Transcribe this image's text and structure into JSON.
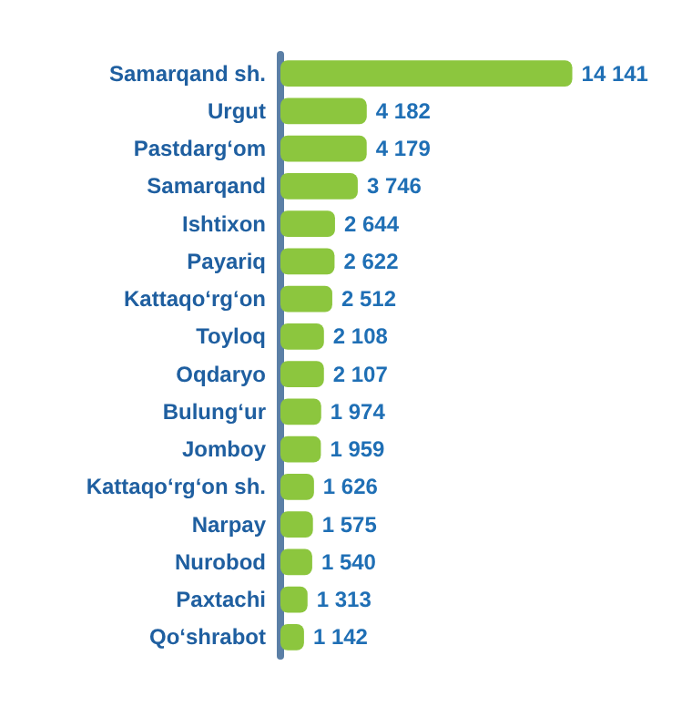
{
  "chart_data": {
    "type": "bar",
    "orientation": "horizontal",
    "categories": [
      "Samarqand sh.",
      "Urgut",
      "Pastdarg‘om",
      "Samarqand",
      "Ishtixon",
      "Payariq",
      "Kattaqo‘rg‘on",
      "Toyloq",
      "Oqdaryo",
      "Bulung‘ur",
      "Jomboy",
      "Kattaqo‘rg‘on sh.",
      "Narpay",
      "Nurobod",
      "Paxtachi",
      "Qo‘shrabot"
    ],
    "values": [
      14141,
      4182,
      4179,
      3746,
      2644,
      2622,
      2512,
      2108,
      2107,
      1974,
      1959,
      1626,
      1575,
      1540,
      1313,
      1142
    ],
    "value_labels": [
      "14 141",
      "4 182",
      "4 179",
      "3 746",
      "2 644",
      "2 622",
      "2 512",
      "2 108",
      "2 107",
      "1 974",
      "1 959",
      "1 626",
      "1 575",
      "1 540",
      "1 313",
      "1 142"
    ],
    "color": "#8cc63e"
  }
}
